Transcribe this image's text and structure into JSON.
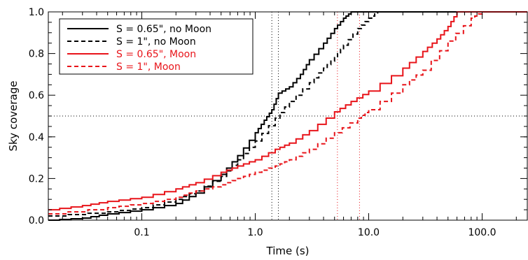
{
  "chart_data": {
    "type": "line",
    "title": "",
    "xlabel": "Time (s)",
    "ylabel": "Sky coverage",
    "x_scale": "log",
    "xlim": [
      0.015,
      250
    ],
    "ylim": [
      0,
      1
    ],
    "x_ticks": [
      {
        "value": 0.1,
        "label": "0.1"
      },
      {
        "value": 1,
        "label": "1.0"
      },
      {
        "value": 10,
        "label": "10.0"
      },
      {
        "value": 100,
        "label": "100.0"
      }
    ],
    "y_ticks": [
      {
        "value": 0.0,
        "label": "0.0"
      },
      {
        "value": 0.2,
        "label": "0.2"
      },
      {
        "value": 0.4,
        "label": "0.4"
      },
      {
        "value": 0.6,
        "label": "0.6"
      },
      {
        "value": 0.8,
        "label": "0.8"
      },
      {
        "value": 1.0,
        "label": "1.0"
      }
    ],
    "reference_lines": {
      "horizontal": [
        0.5
      ],
      "vertical": [
        1.4,
        1.6,
        5.3,
        8.3
      ]
    },
    "legend_position": "top-left",
    "series": [
      {
        "name": "S = 0.65\", no Moon",
        "color": "#000000",
        "dash": "solid",
        "x": [
          0.015,
          0.03,
          0.05,
          0.1,
          0.2,
          0.3,
          0.5,
          0.7,
          1.0,
          1.2,
          1.4,
          1.6,
          2.0,
          2.5,
          3.0,
          4.0,
          5.0,
          6.0,
          7.0,
          10.0,
          250
        ],
        "y": [
          0.0,
          0.01,
          0.03,
          0.05,
          0.08,
          0.13,
          0.22,
          0.31,
          0.42,
          0.48,
          0.53,
          0.61,
          0.64,
          0.7,
          0.77,
          0.85,
          0.92,
          0.97,
          1.0,
          1.0,
          1.0
        ]
      },
      {
        "name": "S = 1\", no Moon",
        "color": "#000000",
        "dash": "dashed",
        "x": [
          0.015,
          0.05,
          0.1,
          0.2,
          0.3,
          0.5,
          0.7,
          1.0,
          1.5,
          2.0,
          3.0,
          4.0,
          5.0,
          6.0,
          8.0,
          10.0,
          12.0,
          250
        ],
        "y": [
          0.02,
          0.04,
          0.06,
          0.1,
          0.14,
          0.21,
          0.29,
          0.38,
          0.49,
          0.57,
          0.66,
          0.73,
          0.78,
          0.84,
          0.92,
          0.97,
          1.0,
          1.0
        ]
      },
      {
        "name": "S = 0.65\", Moon",
        "color": "#e8141a",
        "dash": "solid",
        "x": [
          0.015,
          0.03,
          0.05,
          0.1,
          0.2,
          0.3,
          0.5,
          0.7,
          1.0,
          1.5,
          2.0,
          3.0,
          5.0,
          7.0,
          10.0,
          20.0,
          30.0,
          40.0,
          50.0,
          60.0,
          250
        ],
        "y": [
          0.05,
          0.07,
          0.09,
          0.11,
          0.15,
          0.18,
          0.23,
          0.26,
          0.29,
          0.34,
          0.37,
          0.43,
          0.52,
          0.57,
          0.62,
          0.73,
          0.81,
          0.87,
          0.93,
          1.0,
          1.0
        ]
      },
      {
        "name": "S = 1\", Moon",
        "color": "#e8141a",
        "dash": "dashed",
        "x": [
          0.015,
          0.05,
          0.1,
          0.2,
          0.3,
          0.5,
          0.7,
          1.0,
          1.5,
          2.0,
          3.0,
          5.0,
          8.0,
          10.0,
          20.0,
          30.0,
          50.0,
          80.0,
          100.0,
          250
        ],
        "y": [
          0.03,
          0.06,
          0.08,
          0.11,
          0.14,
          0.17,
          0.2,
          0.23,
          0.26,
          0.29,
          0.34,
          0.42,
          0.49,
          0.53,
          0.65,
          0.72,
          0.86,
          0.97,
          1.0,
          1.0
        ]
      }
    ]
  }
}
